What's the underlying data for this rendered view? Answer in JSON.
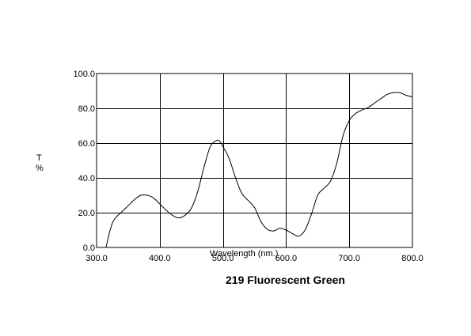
{
  "chart_data": {
    "type": "line",
    "title": "219 Fluorescent Green",
    "xlabel": "Wavelength (nm.)",
    "ylabel_top": "T",
    "ylabel_bottom": "%",
    "xlim": [
      300,
      800
    ],
    "ylim": [
      0,
      100
    ],
    "x_ticks": [
      300,
      400,
      500,
      600,
      700,
      800
    ],
    "y_ticks": [
      0,
      20,
      40,
      60,
      80,
      100
    ],
    "x_tick_labels": [
      "300.0",
      "400.0",
      "500.0",
      "600.0",
      "700.0",
      "800.0"
    ],
    "y_tick_labels": [
      "0.0",
      "20.0",
      "40.0",
      "60.0",
      "80.0",
      "100.0"
    ],
    "grid": true,
    "line_color": "#000000",
    "series": [
      {
        "x": [
          315,
          320,
          325,
          330,
          340,
          350,
          360,
          370,
          380,
          390,
          400,
          410,
          420,
          430,
          440,
          450,
          460,
          470,
          480,
          490,
          495,
          500,
          510,
          520,
          530,
          540,
          550,
          560,
          570,
          580,
          590,
          600,
          610,
          620,
          630,
          640,
          650,
          660,
          670,
          680,
          690,
          700,
          710,
          720,
          730,
          740,
          750,
          760,
          770,
          780,
          790,
          800
        ],
        "y": [
          0,
          8,
          14,
          17,
          20.5,
          24,
          27.5,
          30,
          30,
          28.5,
          25,
          21.5,
          18.5,
          17,
          18.5,
          22.5,
          32,
          46,
          58,
          61.5,
          61,
          58,
          51,
          40,
          31,
          27,
          23,
          15,
          10.5,
          9.5,
          11,
          10,
          8,
          6.5,
          10,
          19,
          30,
          34,
          38,
          48,
          64,
          73,
          77,
          79,
          80.5,
          83,
          85.5,
          88,
          89,
          89,
          87.5,
          86.5
        ]
      }
    ]
  }
}
